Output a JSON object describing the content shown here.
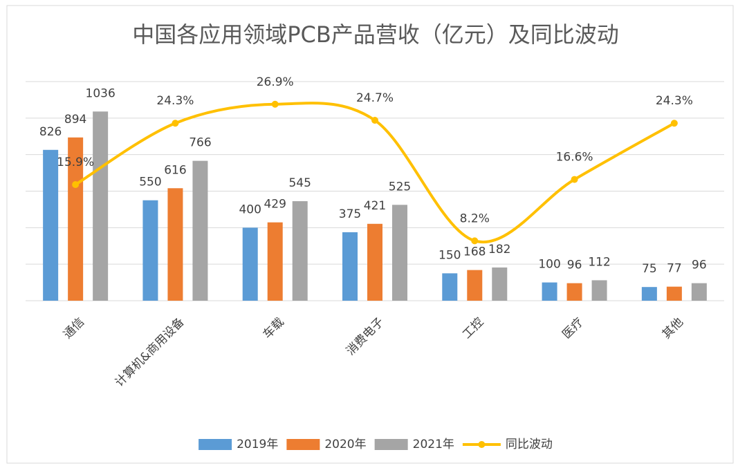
{
  "chart_data": {
    "type": "bar",
    "title": "中国各应用领域PCB产品营收（亿元）及同比波动",
    "categories": [
      "通信",
      "计算机&商用设备",
      "车载",
      "消费电子",
      "工控",
      "医疗",
      "其他"
    ],
    "series": [
      {
        "name": "2019年",
        "type": "bar",
        "color": "#5b9bd5",
        "values": [
          826,
          550,
          400,
          375,
          150,
          100,
          75
        ]
      },
      {
        "name": "2020年",
        "type": "bar",
        "color": "#ed7d31",
        "values": [
          894,
          616,
          429,
          421,
          168,
          96,
          77
        ]
      },
      {
        "name": "2021年",
        "type": "bar",
        "color": "#a5a5a5",
        "values": [
          1036,
          766,
          545,
          525,
          182,
          112,
          96
        ]
      },
      {
        "name": "同比波动",
        "type": "line",
        "axis": "y2",
        "color": "#ffc000",
        "values": [
          15.9,
          24.3,
          26.9,
          24.7,
          8.2,
          16.6,
          24.3
        ],
        "value_labels": [
          "15.9%",
          "24.3%",
          "26.9%",
          "24.7%",
          "8.2%",
          "16.6%",
          "24.3%"
        ]
      }
    ],
    "ylim": [
      0,
      1200
    ],
    "yticks": [
      0,
      200,
      400,
      600,
      800,
      1000,
      1200
    ],
    "y2lim": [
      0,
      30
    ],
    "grid": true,
    "legend": "bottom"
  }
}
